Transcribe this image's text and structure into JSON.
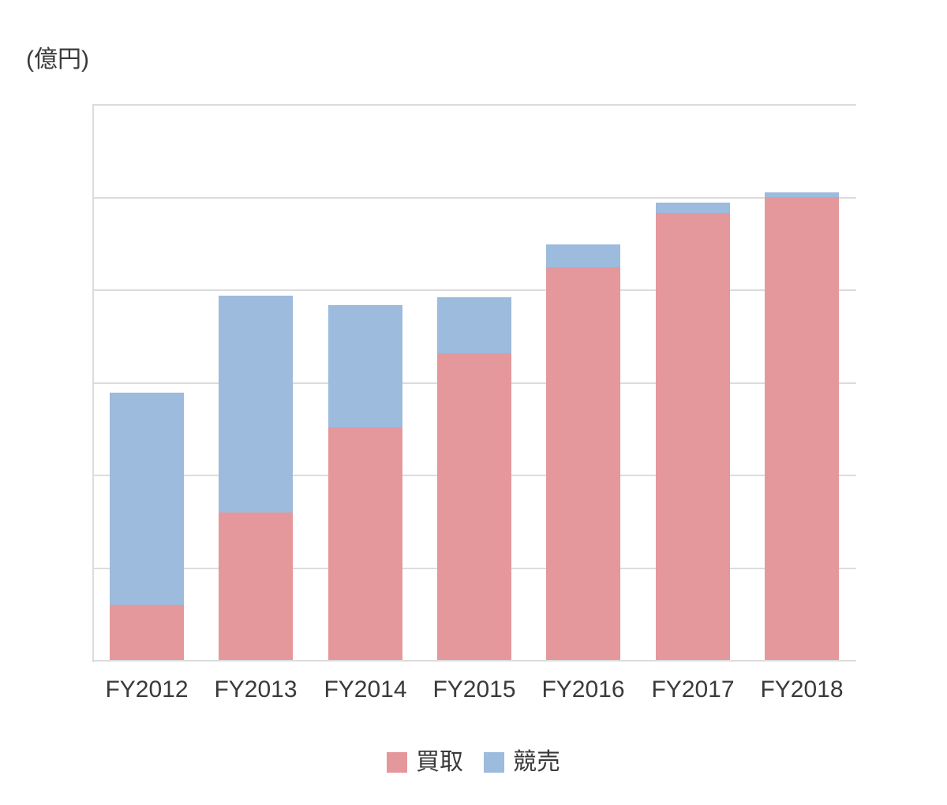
{
  "chart_data": {
    "type": "bar",
    "stacked": true,
    "unit_label": "(億円)",
    "categories": [
      "FY2012",
      "FY2013",
      "FY2014",
      "FY2015",
      "FY2016",
      "FY2017",
      "FY2018"
    ],
    "series": [
      {
        "name": "買取",
        "color": "#E5989B",
        "values": [
          60,
          160,
          252,
          332,
          425,
          483,
          500
        ]
      },
      {
        "name": "競売",
        "color": "#9CBBDD",
        "values": [
          229,
          234,
          132,
          60,
          25,
          11,
          5
        ]
      }
    ],
    "totals": [
      289,
      394,
      384,
      392,
      450,
      494,
      505
    ],
    "ylim": [
      0,
      600
    ],
    "gridline_step": 100,
    "y_tick_labels_shown": false,
    "grid": true,
    "legend_position": "bottom",
    "axis_color": "#DCDCDC",
    "text_color": "#3A3A3A",
    "background_color": "#FFFFFF"
  }
}
